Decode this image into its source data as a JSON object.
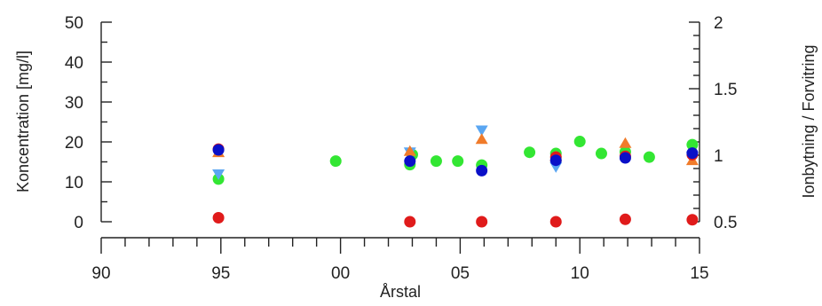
{
  "chart_data": {
    "type": "scatter",
    "title": "",
    "xlabel": "Årstal",
    "ylabel": "Koncentration [mg/l]",
    "y2label": "Ionbytning / Forvitring",
    "xlim": [
      1990,
      2015
    ],
    "ylim": [
      0,
      50
    ],
    "y2lim": [
      0.5,
      2
    ],
    "x_ticks": [
      1990,
      1995,
      2000,
      2005,
      2010,
      2015
    ],
    "x_tick_labels": [
      "90",
      "95",
      "00",
      "05",
      "10",
      "15"
    ],
    "y_ticks": [
      0,
      10,
      20,
      30,
      40,
      50
    ],
    "y_tick_labels": [
      "0",
      "10",
      "20",
      "30",
      "40",
      "50"
    ],
    "y2_ticks": [
      0.5,
      1,
      1.5,
      2
    ],
    "y2_tick_labels": [
      "0.5",
      "1",
      "1.5",
      "2"
    ],
    "grid": false,
    "legend": "none",
    "series": [
      {
        "marker": "circle",
        "color": "#33e633",
        "x": [
          1994.9,
          1999.8,
          2002.9,
          2003.0,
          2004.0,
          2004.9,
          2005.9,
          2007.9,
          2009.0,
          2010.0,
          2010.9,
          2011.9,
          2012.9,
          2014.7
        ],
        "y": [
          10.7,
          15.2,
          14.3,
          16.8,
          15.2,
          15.2,
          14.2,
          17.4,
          17.1,
          20.1,
          17.1,
          17.5,
          16.2,
          19.3
        ]
      },
      {
        "marker": "triangle-down",
        "color": "#5aa6f2",
        "x": [
          1994.9,
          2002.9,
          2005.9,
          2009.0,
          2014.7
        ],
        "y": [
          12.0,
          17.5,
          23.0,
          13.8,
          16.5
        ]
      },
      {
        "marker": "triangle-up",
        "color": "#f07b2a",
        "x": [
          1994.9,
          2002.9,
          2005.9,
          2009.0,
          2011.9,
          2014.7
        ],
        "y": [
          17.3,
          17.6,
          20.6,
          16.3,
          19.6,
          15.3
        ]
      },
      {
        "marker": "circle",
        "color": "#e01b1b",
        "x": [
          1994.9,
          2009.0,
          2011.9,
          2014.7
        ],
        "y": [
          18.2,
          16.2,
          16.4,
          16.8
        ]
      },
      {
        "marker": "circle",
        "color": "#0a10c8",
        "x": [
          1994.9,
          2002.9,
          2005.9,
          2009.0,
          2011.9,
          2014.7
        ],
        "y": [
          18.0,
          15.2,
          12.8,
          15.4,
          16.0,
          17.2
        ]
      },
      {
        "marker": "circle",
        "color": "#e01b1b",
        "x": [
          1994.9,
          2002.9,
          2005.9,
          2009.0,
          2011.9,
          2014.7
        ],
        "y": [
          1.0,
          0.0,
          0.0,
          0.0,
          0.6,
          0.5
        ]
      }
    ]
  }
}
